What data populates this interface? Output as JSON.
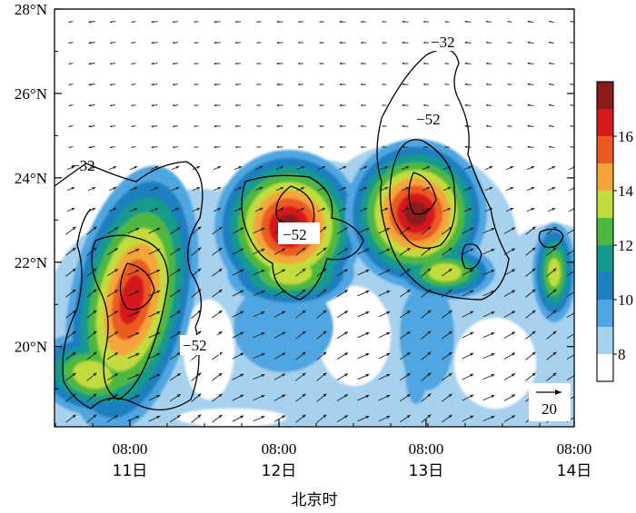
{
  "chart_data": {
    "type": "heatmap",
    "title": "",
    "xlabel": "北京时",
    "ylabel": "",
    "x_ticks": [
      {
        "time": "08:00",
        "day": "11日"
      },
      {
        "time": "08:00",
        "day": "12日"
      },
      {
        "time": "08:00",
        "day": "13日"
      },
      {
        "time": "08:00",
        "day": "14日"
      }
    ],
    "y_ticks": [
      "20°N",
      "22°N",
      "24°N",
      "26°N",
      "28°N"
    ],
    "ylim": [
      18.1,
      28
    ],
    "colorbar": {
      "levels": [
        8,
        9,
        10,
        11,
        12,
        13,
        14,
        15,
        16,
        17
      ],
      "labels": [
        "8",
        "10",
        "12",
        "14",
        "16"
      ],
      "colors": [
        "#ffffff",
        "#a6d1ef",
        "#4fa6e0",
        "#1f7fbf",
        "#139a8c",
        "#4db840",
        "#c3dc3c",
        "#f4a53a",
        "#ea5a22",
        "#d7191c",
        "#8c1a1a"
      ]
    },
    "contours": [
      {
        "value": -32,
        "labels": [
          "−32",
          "−32"
        ]
      },
      {
        "value": -52,
        "labels": [
          "−52",
          "−52",
          "−52"
        ]
      }
    ],
    "vector_reference": {
      "label": "20",
      "unit_length": 20
    },
    "peaks": [
      {
        "day": "11日",
        "lat": 21.3,
        "value": 15
      },
      {
        "day": "12日",
        "lat": 23.0,
        "value": 16
      },
      {
        "day": "13日",
        "lat": 23.3,
        "value": 16
      },
      {
        "day": "14日",
        "lat": 22.0,
        "value": 12
      }
    ]
  }
}
